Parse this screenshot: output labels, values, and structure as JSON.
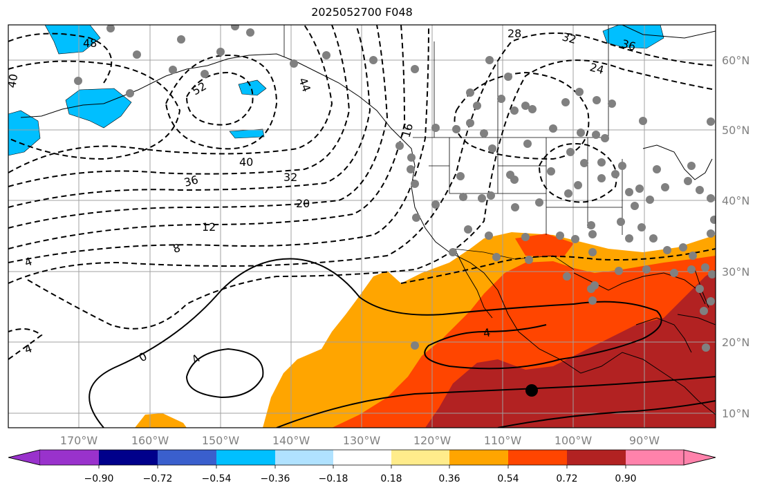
{
  "title": "2025052700 F048",
  "lat_labels": [
    "60°N",
    "50°N",
    "40°N",
    "30°N",
    "20°N",
    "10°N"
  ],
  "lon_labels": [
    "170°W",
    "160°W",
    "150°W",
    "140°W",
    "130°W",
    "120°W",
    "110°W",
    "100°W",
    "90°W"
  ],
  "colorbar": {
    "tick_labels": [
      "−0.90",
      "−0.72",
      "−0.54",
      "−0.36",
      "−0.18",
      "0.18",
      "0.36",
      "0.54",
      "0.72",
      "0.90"
    ],
    "colors": [
      "#9932cc",
      "#00008b",
      "#3a5fcd",
      "#00bfff",
      "#b0e2ff",
      "#ffffff",
      "#ffec8b",
      "#ffa500",
      "#ff4500",
      "#b22222",
      "#ff82ab"
    ]
  },
  "contour_labels": [
    "48",
    "40",
    "52",
    "44",
    "28",
    "32",
    "36",
    "24",
    "16",
    "40",
    "36",
    "32",
    "20",
    "12",
    "8",
    "4",
    "4",
    "0",
    "4",
    "4"
  ],
  "marker_color": "#808080"
}
